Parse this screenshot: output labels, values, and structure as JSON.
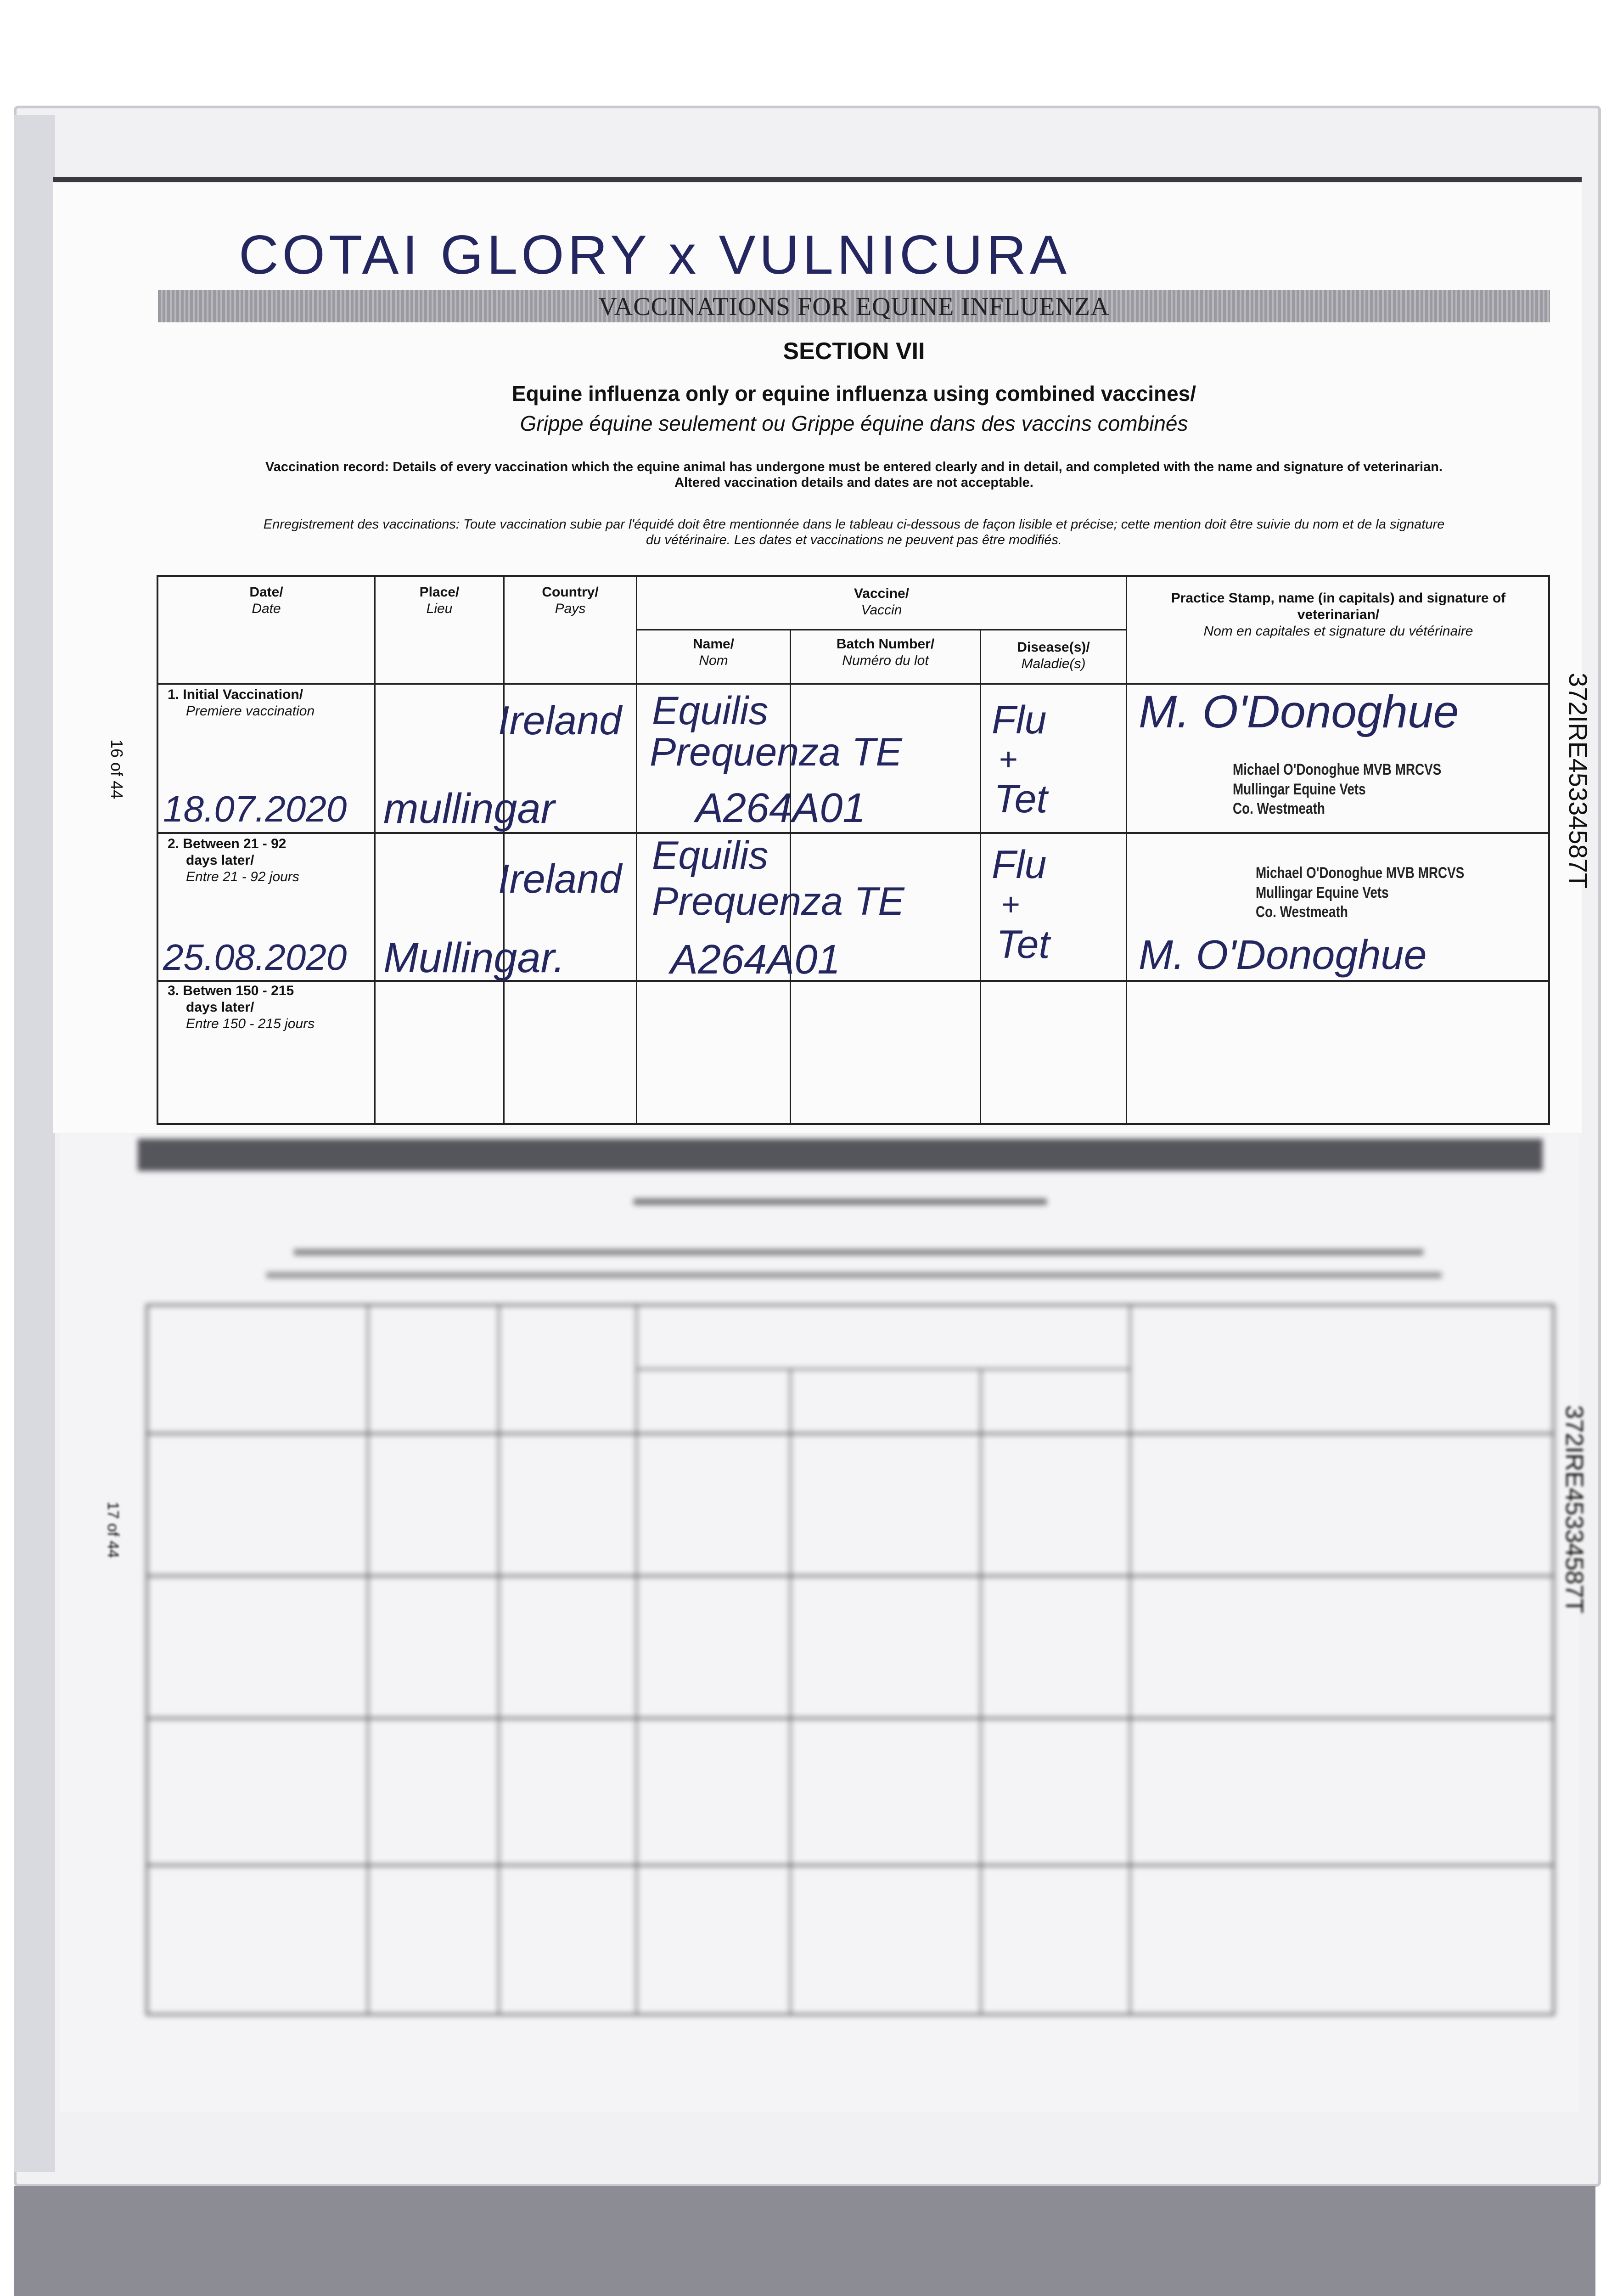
{
  "handwritten_title": "COTAI GLORY x VULNICURA",
  "banner": "VACCINATIONS FOR EQUINE INFLUENZA",
  "section": "SECTION VII",
  "subtitle_en": "Equine influenza only or equine influenza using combined vaccines/",
  "subtitle_fr": "Grippe équine seulement ou Grippe équine dans des vaccins combinés",
  "instructions": {
    "en_line1": "Vaccination record: Details of every vaccination which the equine animal has undergone must be entered clearly and in detail, and completed with the name and signature of veterinarian.",
    "en_line2": "Altered vaccination details and dates are not acceptable.",
    "fr_line1": "Enregistrement des vaccinations: Toute vaccination subie par l'équidé doit être mentionnée dans le tableau ci-dessous de façon lisible et précise; cette mention doit être suivie du nom et de la signature",
    "fr_line2": "du vétérinaire. Les dates et vaccinations ne peuvent pas être modifiés."
  },
  "page_number": "16 of 44",
  "next_page_number": "17 of 44",
  "passport_id": "372IRE45334587T",
  "table": {
    "headers": {
      "date": {
        "en": "Date/",
        "fr": "Date"
      },
      "place": {
        "en": "Place/",
        "fr": "Lieu"
      },
      "country": {
        "en": "Country/",
        "fr": "Pays"
      },
      "vaccine": {
        "en": "Vaccine/",
        "fr": "Vaccin"
      },
      "name": {
        "en": "Name/",
        "fr": "Nom"
      },
      "batch": {
        "en": "Batch Number/",
        "fr": "Numéro du lot"
      },
      "disease": {
        "en": "Disease(s)/",
        "fr": "Maladie(s)"
      },
      "vet": {
        "en": "Practice Stamp, name (in capitals) and signature of veterinarian/",
        "fr": "Nom en capitales et signature du vétérinaire"
      }
    },
    "rows": [
      {
        "label_en": "1. Initial Vaccination/",
        "label_fr": "Premiere vaccination",
        "label_en2": "",
        "date": "18.07.2020",
        "place": "mullingar",
        "country": "Ireland",
        "name_line1": "Equilis",
        "name_line2": "Prequenza TE",
        "batch": "A264A01",
        "disease_line1": "Flu",
        "disease_line2": "+",
        "disease_line3": "Tet",
        "signature": "M. O'Donoghue",
        "stamp": [
          "Michael O'Donoghue MVB MRCVS",
          "Mullingar Equine Vets",
          "Co. Westmeath"
        ]
      },
      {
        "label_en": "2. Between 21 - 92",
        "label_en2": "days later/",
        "label_fr": "Entre 21 - 92 jours",
        "date": "25.08.2020",
        "place": "Mullingar.",
        "country": "Ireland",
        "name_line1": "Equilis",
        "name_line2": "Prequenza TE",
        "batch": "A264A01",
        "disease_line1": "Flu",
        "disease_line2": "+",
        "disease_line3": "Tet",
        "signature": "M. O'Donoghue",
        "stamp": [
          "Michael O'Donoghue MVB MRCVS",
          "Mullingar Equine Vets",
          "Co. Westmeath"
        ]
      },
      {
        "label_en": "3. Betwen 150 - 215",
        "label_en2": "days later/",
        "label_fr": "Entre 150 - 215 jours"
      }
    ]
  },
  "colors": {
    "ink": "#24265f",
    "print": "#111111",
    "banner": "#a8a8ad"
  }
}
